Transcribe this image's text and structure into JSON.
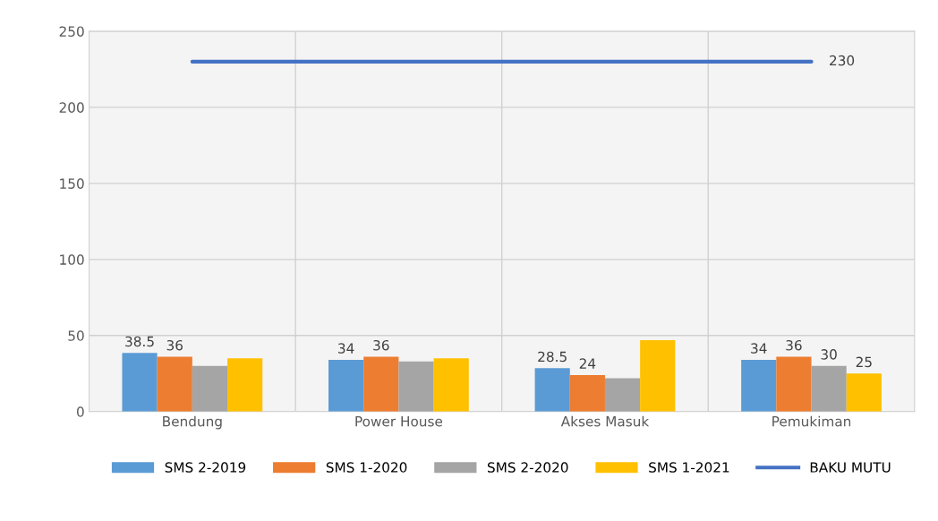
{
  "chart_data": {
    "type": "bar",
    "categories": [
      "Bendung",
      "Power House",
      "Akses Masuk",
      "Pemukiman"
    ],
    "series": [
      {
        "name": "SMS 2-2019",
        "color": "#5b9bd5",
        "values": [
          38.5,
          34,
          28.5,
          34
        ],
        "value_labels": [
          "38.5",
          "34",
          "28.5",
          "34"
        ]
      },
      {
        "name": "SMS 1-2020",
        "color": "#ed7d31",
        "values": [
          36,
          36,
          24,
          36
        ],
        "value_labels": [
          "36",
          "36",
          "24",
          "36"
        ]
      },
      {
        "name": "SMS 2-2020",
        "color": "#a5a5a5",
        "values": [
          30,
          33,
          22,
          30
        ],
        "value_labels": [
          null,
          null,
          null,
          "30"
        ]
      },
      {
        "name": "SMS 1-2021",
        "color": "#ffc000",
        "values": [
          35,
          35,
          47,
          25
        ],
        "value_labels": [
          null,
          null,
          null,
          "25"
        ]
      },
      {
        "name": "BAKU MUTU",
        "type": "line",
        "color": "#4472c4",
        "values": [
          230,
          230,
          230,
          230
        ],
        "value_labels": [
          null,
          null,
          null,
          "230"
        ]
      }
    ],
    "ylim": [
      0,
      250
    ],
    "yticks": [
      0,
      50,
      100,
      150,
      200,
      250
    ],
    "grid": true,
    "legend": "bottom"
  }
}
